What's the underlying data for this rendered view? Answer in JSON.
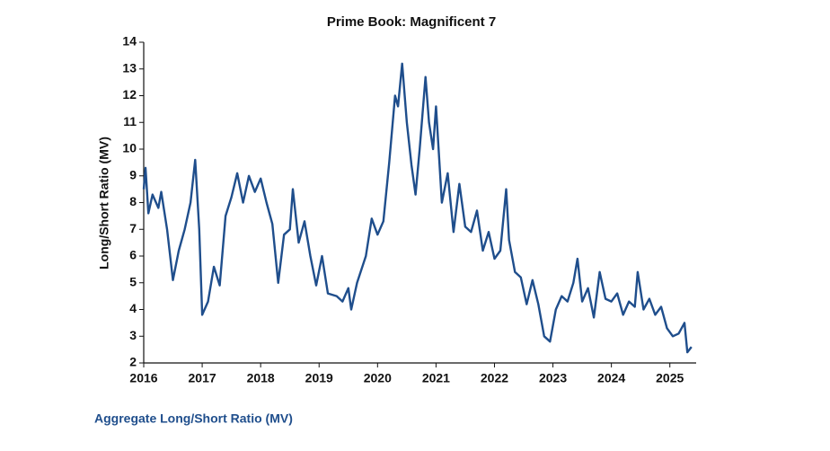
{
  "chart_data": {
    "type": "line",
    "title": "Prime Book: Magnificent 7",
    "ylabel": "Long/Short Ratio (MV)",
    "x": [
      2016.0,
      2016.03,
      2016.08,
      2016.15,
      2016.25,
      2016.3,
      2016.4,
      2016.5,
      2016.6,
      2016.7,
      2016.8,
      2016.88,
      2016.95,
      2017.0,
      2017.1,
      2017.2,
      2017.3,
      2017.4,
      2017.5,
      2017.6,
      2017.7,
      2017.8,
      2017.9,
      2018.0,
      2018.1,
      2018.2,
      2018.3,
      2018.4,
      2018.5,
      2018.55,
      2018.65,
      2018.75,
      2018.85,
      2018.95,
      2019.05,
      2019.15,
      2019.3,
      2019.4,
      2019.5,
      2019.55,
      2019.65,
      2019.8,
      2019.9,
      2020.0,
      2020.1,
      2020.2,
      2020.3,
      2020.35,
      2020.42,
      2020.5,
      2020.58,
      2020.65,
      2020.72,
      2020.82,
      2020.88,
      2020.95,
      2021.0,
      2021.1,
      2021.2,
      2021.3,
      2021.4,
      2021.5,
      2021.6,
      2021.7,
      2021.8,
      2021.9,
      2022.0,
      2022.1,
      2022.2,
      2022.25,
      2022.35,
      2022.45,
      2022.55,
      2022.65,
      2022.75,
      2022.85,
      2022.95,
      2023.05,
      2023.15,
      2023.25,
      2023.35,
      2023.42,
      2023.5,
      2023.6,
      2023.7,
      2023.8,
      2023.9,
      2024.0,
      2024.1,
      2024.2,
      2024.3,
      2024.4,
      2024.45,
      2024.55,
      2024.65,
      2024.75,
      2024.85,
      2024.95,
      2025.05,
      2025.15,
      2025.25,
      2025.3,
      2025.37
    ],
    "series": [
      {
        "name": "Aggregate Long/Short Ratio (MV)",
        "color": "#1f4e8c",
        "values": [
          8.5,
          9.3,
          7.6,
          8.3,
          7.8,
          8.4,
          7.0,
          5.1,
          6.2,
          7.0,
          8.0,
          9.6,
          7.0,
          3.8,
          4.3,
          5.6,
          4.9,
          7.5,
          8.2,
          9.1,
          8.0,
          9.0,
          8.4,
          8.9,
          8.0,
          7.2,
          5.0,
          6.8,
          7.0,
          8.5,
          6.5,
          7.3,
          6.0,
          4.9,
          6.0,
          4.6,
          4.5,
          4.3,
          4.8,
          4.0,
          5.0,
          6.0,
          7.4,
          6.8,
          7.3,
          9.5,
          12.0,
          11.6,
          13.2,
          11.0,
          9.4,
          8.3,
          10.0,
          12.7,
          11.0,
          10.0,
          11.6,
          8.0,
          9.1,
          6.9,
          8.7,
          7.1,
          6.9,
          7.7,
          6.2,
          6.9,
          5.9,
          6.2,
          8.5,
          6.6,
          5.4,
          5.2,
          4.2,
          5.1,
          4.2,
          3.0,
          2.8,
          4.0,
          4.5,
          4.3,
          5.0,
          5.9,
          4.3,
          4.8,
          3.7,
          5.4,
          4.4,
          4.3,
          4.6,
          3.8,
          4.3,
          4.1,
          5.4,
          4.0,
          4.4,
          3.8,
          4.1,
          3.3,
          3.0,
          3.1,
          3.5,
          2.4,
          2.6
        ]
      }
    ],
    "xlim": [
      2016,
      2025.45
    ],
    "xticks": [
      2016,
      2017,
      2018,
      2019,
      2020,
      2021,
      2022,
      2023,
      2024,
      2025
    ],
    "ylim": [
      2,
      14
    ],
    "yticks": [
      2,
      3,
      4,
      5,
      6,
      7,
      8,
      9,
      10,
      11,
      12,
      13,
      14
    ],
    "grid": false
  }
}
